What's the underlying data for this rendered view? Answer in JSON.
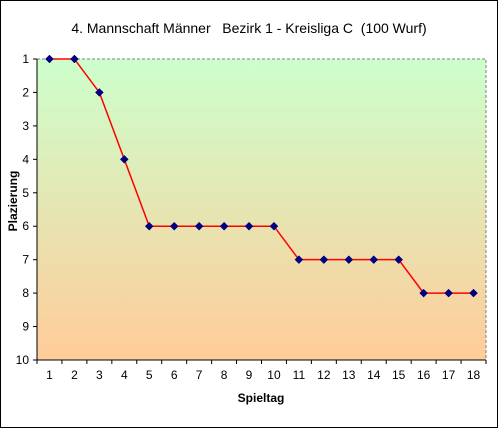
{
  "chart_data": {
    "type": "line",
    "title": "4. Mannschaft Männer   Bezirk 1 - Kreisliga C  (100 Wurf)",
    "xlabel": "Spieltag",
    "ylabel": "Plazierung",
    "x": [
      1,
      2,
      3,
      4,
      5,
      6,
      7,
      8,
      9,
      10,
      11,
      12,
      13,
      14,
      15,
      16,
      17,
      18
    ],
    "x_tick_labels": [
      "1",
      "2",
      "3",
      "4",
      "5",
      "6",
      "7",
      "8",
      "9",
      "10",
      "11",
      "12",
      "13",
      "14",
      "15",
      "16",
      "17",
      "18"
    ],
    "y_tick_labels": [
      "1",
      "2",
      "3",
      "4",
      "5",
      "6",
      "7",
      "8",
      "9",
      "10"
    ],
    "ylim": [
      1,
      10
    ],
    "y_inverted": true,
    "grid": false,
    "legend": "none",
    "series": [
      {
        "values": [
          1,
          1,
          2,
          4,
          6,
          6,
          6,
          6,
          6,
          6,
          7,
          7,
          7,
          7,
          7,
          8,
          8,
          8
        ],
        "line_color": "#ff0000",
        "marker_color": "#000080",
        "marker": "diamond"
      }
    ],
    "background_gradient": [
      "#ccffcc",
      "#ffcc99"
    ]
  }
}
